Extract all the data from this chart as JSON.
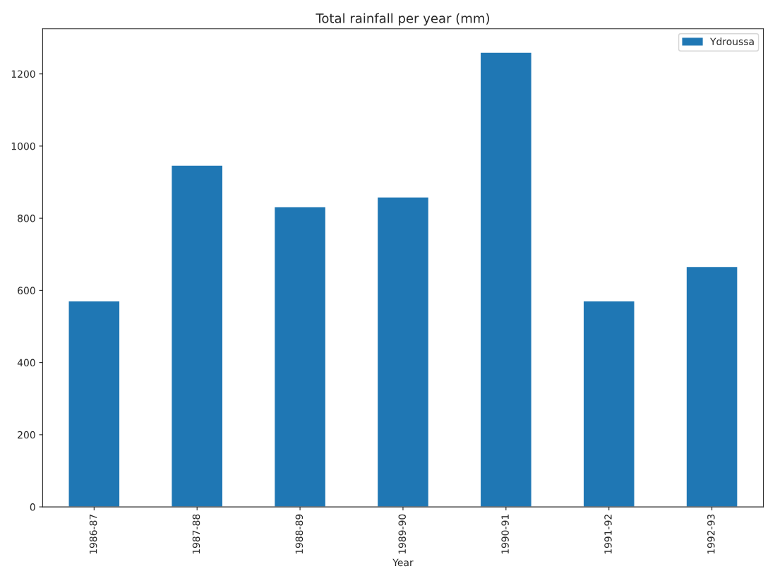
{
  "chart_data": {
    "type": "bar",
    "title": "Total rainfall per year (mm)",
    "xlabel": "Year",
    "categories": [
      "1986-87",
      "1987-88",
      "1988-89",
      "1989-90",
      "1990-91",
      "1991-92",
      "1992-93"
    ],
    "series": [
      {
        "name": "Ydroussa",
        "color": "#1f77b4",
        "values": [
          571,
          947,
          832,
          859,
          1260,
          571,
          666
        ]
      }
    ],
    "ylim": [
      0,
      1325
    ],
    "yticks": [
      0,
      200,
      400,
      600,
      800,
      1000,
      1200
    ],
    "grid": false,
    "legend": "top right"
  }
}
